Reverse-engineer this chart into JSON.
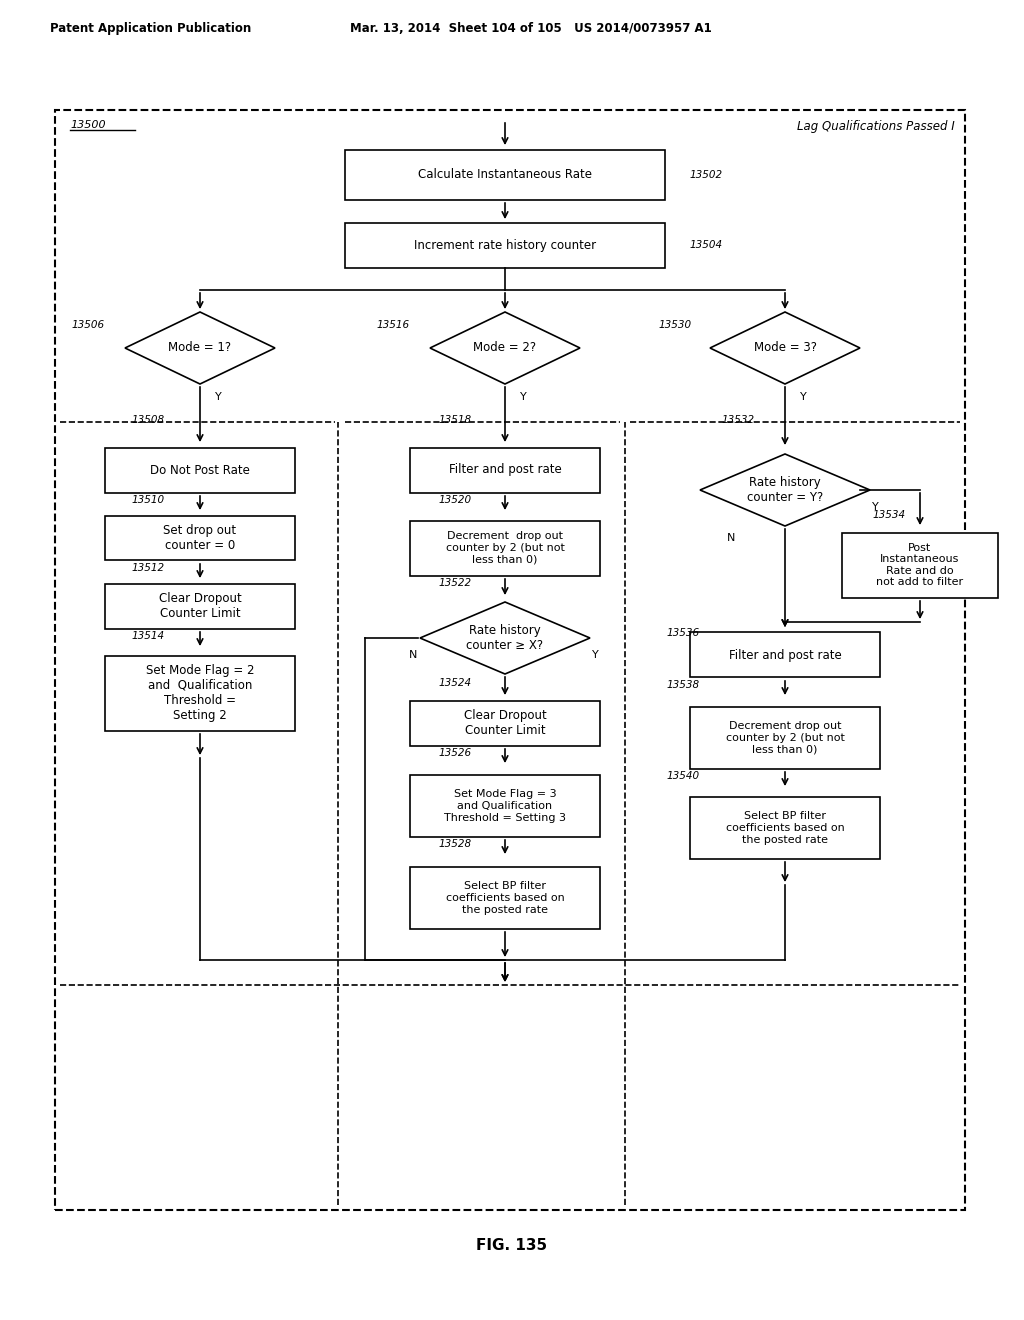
{
  "title": "FIG. 135",
  "header_left": "Patent Application Publication",
  "header_right": "Mar. 13, 2014  Sheet 104 of 105   US 2014/0073957 A1",
  "label_13500": "13500",
  "label_lag": "Lag Qualifications Passed I",
  "boxes": {
    "calc_inst": {
      "text": "Calculate Instantaneous Rate",
      "label": "13502"
    },
    "incr_hist": {
      "text": "Increment rate history counter",
      "label": "13504"
    },
    "mode1": {
      "text": "Mode = 1?",
      "label": "13506"
    },
    "mode2": {
      "text": "Mode = 2?",
      "label": "13516"
    },
    "mode3": {
      "text": "Mode = 3?",
      "label": "13530"
    },
    "do_not_post": {
      "text": "Do Not Post Rate",
      "label": "13508"
    },
    "filter_post1": {
      "text": "Filter and post rate",
      "label": "13518"
    },
    "rate_hist_Y": {
      "text": "Rate history\ncounter = Y?",
      "label": "13532"
    },
    "set_dropout0": {
      "text": "Set drop out\ncounter = 0",
      "label": "13510"
    },
    "decr_dropout1": {
      "text": "Decrement  drop out\ncounter by 2 (but not\nless than 0)",
      "label": "13520"
    },
    "post_inst": {
      "text": "Post\nInstantaneous\nRate and do\nnot add to filter",
      "label": "13534"
    },
    "clear_dropout1": {
      "text": "Clear Dropout\nCounter Limit",
      "label": "13512"
    },
    "rate_hist_X": {
      "text": "Rate history\ncounter ≥ X?",
      "label": "13522"
    },
    "filter_post2": {
      "text": "Filter and post rate",
      "label": "13536"
    },
    "set_mode2": {
      "text": "Set Mode Flag = 2\nand  Qualification\nThreshold =\nSetting 2",
      "label": "13514"
    },
    "clear_dropout2": {
      "text": "Clear Dropout\nCounter Limit",
      "label": "13524"
    },
    "decr_dropout2": {
      "text": "Decrement drop out\ncounter by 2 (but not\nless than 0)",
      "label": "13538"
    },
    "set_mode3": {
      "text": "Set Mode Flag = 3\nand Qualification\nThreshold = Setting 3",
      "label": "13526"
    },
    "sel_bp2": {
      "text": "Select BP filter\ncoefficients based on\nthe posted rate",
      "label": "13540"
    },
    "sel_bp1": {
      "text": "Select BP filter\ncoefficients based on\nthe posted rate",
      "label": "13528"
    }
  },
  "bg_color": "#ffffff",
  "box_color": "#000000",
  "fig_caption": "FIG. 135"
}
